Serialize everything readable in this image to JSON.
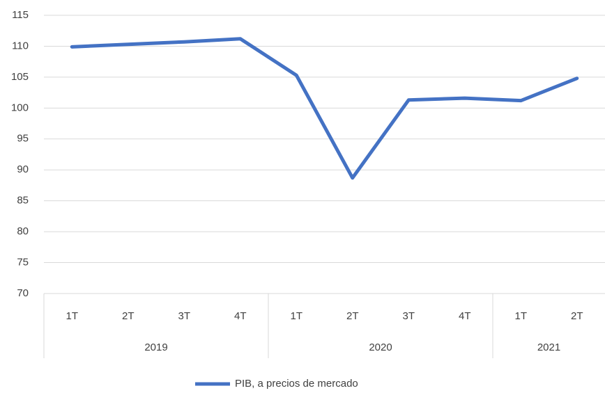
{
  "chart_data": {
    "type": "line",
    "groups": [
      {
        "label": "2019",
        "categories": [
          "1T",
          "2T",
          "3T",
          "4T"
        ]
      },
      {
        "label": "2020",
        "categories": [
          "1T",
          "2T",
          "3T",
          "4T"
        ]
      },
      {
        "label": "2021",
        "categories": [
          "1T",
          "2T"
        ]
      }
    ],
    "series": [
      {
        "name": "PIB, a precios de mercado",
        "color": "#4472c4",
        "values": [
          109.9,
          110.3,
          110.7,
          111.2,
          105.3,
          88.7,
          101.3,
          101.6,
          101.2,
          104.8
        ]
      }
    ],
    "ylim": [
      70,
      115
    ],
    "yticks": [
      70,
      75,
      80,
      85,
      90,
      95,
      100,
      105,
      110,
      115
    ],
    "grid": true,
    "legend": "bottom"
  }
}
